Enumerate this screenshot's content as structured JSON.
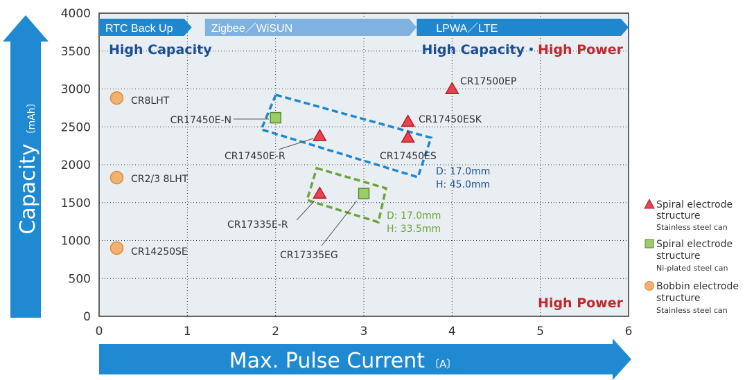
{
  "colors": {
    "plot_bg": "#E9EEF3",
    "grid": "#333333",
    "axis_arrow": "#1F8AD2",
    "band_rtc": "#1E87CF",
    "band_zigbee": "#7FB2DF",
    "band_lpwa": "#1E87CF",
    "capacity_text": "#1B4F94",
    "power_text": "#C0282E",
    "spiral_ss": "#E8434F",
    "spiral_ni": "#9ACD6A",
    "bobbin": "#F2B172",
    "group1_box": "#1E87CF",
    "group2_box": "#6BA43A"
  },
  "chart_data": {
    "type": "scatter",
    "title": "",
    "xlabel": "Max. Pulse Current",
    "xlabel_unit": "〔A〕",
    "ylabel": "Capacity",
    "ylabel_unit": "〔mAh〕",
    "xlim": [
      0,
      6
    ],
    "ylim": [
      0,
      4000
    ],
    "x_ticks": [
      "0",
      "1",
      "2",
      "3",
      "4",
      "5",
      "6"
    ],
    "y_ticks": [
      "0",
      "500",
      "1000",
      "1500",
      "2000",
      "2500",
      "3000",
      "3500",
      "4000"
    ],
    "grid": true,
    "bands": [
      {
        "label": "RTC Back Up",
        "x_start": 0,
        "x_end": 1.05
      },
      {
        "label": "Zigbee／WiSUN",
        "x_start": 1.2,
        "x_end": 3.6
      },
      {
        "label": "LPWA／LTE",
        "x_start": 3.6,
        "x_end": 6.0
      }
    ],
    "regions": {
      "top_left": "High Capacity",
      "top_right_capacity": "High Capacity",
      "top_right_sep": "・",
      "top_right_power": "High Power",
      "bottom_right": "High Power"
    },
    "points": [
      {
        "name": "CR8LHT",
        "x": 0.2,
        "y": 2880,
        "type": "bobbin"
      },
      {
        "name": "CR2/3 8LHT",
        "x": 0.2,
        "y": 1830,
        "type": "bobbin"
      },
      {
        "name": "CR14250SE",
        "x": 0.2,
        "y": 900,
        "type": "bobbin"
      },
      {
        "name": "CR17450E-N",
        "x": 2.0,
        "y": 2620,
        "type": "spiral_ni"
      },
      {
        "name": "CR17450E-R",
        "x": 2.5,
        "y": 2380,
        "type": "spiral_ss"
      },
      {
        "name": "CR17450ESK",
        "x": 3.5,
        "y": 2570,
        "type": "spiral_ss"
      },
      {
        "name": "CR17450ES",
        "x": 3.5,
        "y": 2360,
        "type": "spiral_ss"
      },
      {
        "name": "CR17500EP",
        "x": 4.0,
        "y": 3000,
        "type": "spiral_ss"
      },
      {
        "name": "CR17335E-R",
        "x": 2.5,
        "y": 1620,
        "type": "spiral_ss"
      },
      {
        "name": "CR17335EG",
        "x": 3.0,
        "y": 1620,
        "type": "spiral_ni"
      }
    ],
    "groups": [
      {
        "dimension_lines": [
          "D: 17.0mm",
          "H: 45.0mm"
        ]
      },
      {
        "dimension_lines": [
          "D: 17.0mm",
          "H: 33.5mm"
        ]
      }
    ],
    "legend": {
      "placement": "right",
      "entries": [
        {
          "type": "spiral_ss",
          "title_lines": [
            "Spiral electrode",
            "structure"
          ],
          "subtitle": "Stainless steel can"
        },
        {
          "type": "spiral_ni",
          "title_lines": [
            "Spiral electrode",
            "structure"
          ],
          "subtitle": "Ni-plated steel can"
        },
        {
          "type": "bobbin",
          "title_lines": [
            "Bobbin electrode",
            "structure"
          ],
          "subtitle": "Stainless steel can"
        }
      ]
    }
  }
}
